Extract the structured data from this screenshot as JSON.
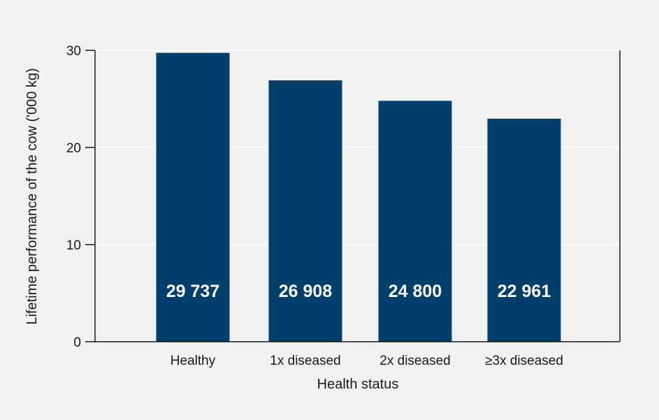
{
  "colors": {
    "background": "#f1f1f2",
    "plot_background": "#f1f1f2",
    "bar": "#003f6b",
    "grid": "#ffffff",
    "axis": "#1a1a1a",
    "data_label": "#ffffff"
  },
  "chart_data": {
    "type": "bar",
    "title": "",
    "xlabel": "Health status",
    "ylabel": "Lifetime performance of the cow ('000 kg)",
    "categories": [
      "Healthy",
      "1x diseased",
      "2x diseased",
      "≥3x diseased"
    ],
    "values": [
      29.737,
      26.908,
      24.8,
      22.961
    ],
    "data_labels": [
      "29 737",
      "26 908",
      "24 800",
      "22 961"
    ],
    "ylim": [
      0,
      30
    ],
    "yticks": [
      0,
      10,
      20,
      30
    ],
    "ytick_labels": [
      "0",
      "10",
      "20",
      "30"
    ],
    "grid": true,
    "legend": "none"
  }
}
